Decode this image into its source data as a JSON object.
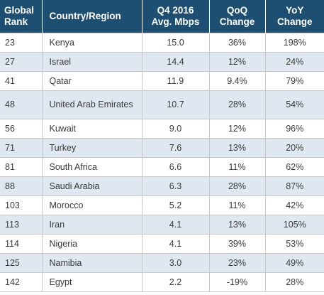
{
  "chart_data": {
    "type": "table",
    "columns": [
      [
        "Global",
        "Rank"
      ],
      [
        "Country/Region"
      ],
      [
        "Q4 2016",
        "Avg. Mbps"
      ],
      [
        "QoQ",
        "Change"
      ],
      [
        "YoY",
        "Change"
      ]
    ],
    "rows": [
      [
        "23",
        "Kenya",
        "15.0",
        "36%",
        "198%"
      ],
      [
        "27",
        "Israel",
        "14.4",
        "12%",
        "24%"
      ],
      [
        "41",
        "Qatar",
        "11.9",
        "9.4%",
        "79%"
      ],
      [
        "48",
        "United Arab Emirates",
        "10.7",
        "28%",
        "54%"
      ],
      [
        "56",
        "Kuwait",
        "9.0",
        "12%",
        "96%"
      ],
      [
        "71",
        "Turkey",
        "7.6",
        "13%",
        "20%"
      ],
      [
        "81",
        "South Africa",
        "6.6",
        "11%",
        "62%"
      ],
      [
        "88",
        "Saudi Arabia",
        "6.3",
        "28%",
        "87%"
      ],
      [
        "103",
        "Morocco",
        "5.2",
        "11%",
        "42%"
      ],
      [
        "113",
        "Iran",
        "4.1",
        "13%",
        "105%"
      ],
      [
        "114",
        "Nigeria",
        "4.1",
        "39%",
        "53%"
      ],
      [
        "125",
        "Namibia",
        "3.0",
        "23%",
        "49%"
      ],
      [
        "142",
        "Egypt",
        "2.2",
        "-19%",
        "28%"
      ]
    ],
    "colors": {
      "header_bg": "#1d4f73",
      "header_text": "#ffffff",
      "stripe": "#dfe8f0"
    }
  }
}
